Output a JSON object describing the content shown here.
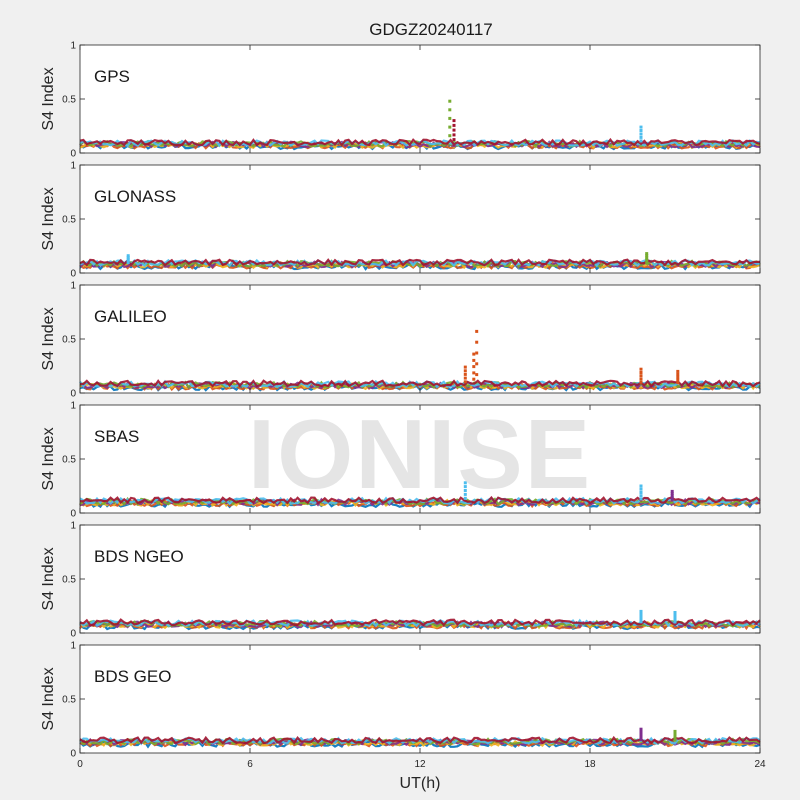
{
  "chart_data": {
    "type": "scatter",
    "title": "GDGZ20240117",
    "xlabel": "UT(h)",
    "ylabel": "S4 Index",
    "xlim": [
      0,
      24
    ],
    "ylim": [
      0,
      1
    ],
    "xticks": [
      "0",
      "6",
      "12",
      "18",
      "24"
    ],
    "yticks": [
      "0",
      "0.5",
      "1"
    ],
    "watermark": "IONISE",
    "grid": false,
    "series_colors": [
      "#0072BD",
      "#D95319",
      "#EDB120",
      "#7E2F8E",
      "#77AC30",
      "#4DBEEE",
      "#A2142F"
    ],
    "panels": [
      {
        "name": "GPS",
        "baseline": 0.08,
        "spikes": [
          {
            "x": 13.05,
            "y": 0.48,
            "color": "#77AC30"
          },
          {
            "x": 13.2,
            "y": 0.3,
            "color": "#A2142F"
          },
          {
            "x": 19.8,
            "y": 0.24,
            "color": "#4DBEEE"
          }
        ]
      },
      {
        "name": "GLONASS",
        "baseline": 0.08,
        "spikes": [
          {
            "x": 1.7,
            "y": 0.16,
            "color": "#4DBEEE"
          },
          {
            "x": 20.0,
            "y": 0.18,
            "color": "#77AC30"
          }
        ]
      },
      {
        "name": "GALILEO",
        "baseline": 0.07,
        "spikes": [
          {
            "x": 14.0,
            "y": 0.57,
            "color": "#D95319"
          },
          {
            "x": 13.9,
            "y": 0.36,
            "color": "#D95319"
          },
          {
            "x": 13.6,
            "y": 0.24,
            "color": "#D95319"
          },
          {
            "x": 19.8,
            "y": 0.22,
            "color": "#D95319"
          },
          {
            "x": 21.1,
            "y": 0.2,
            "color": "#D95319"
          }
        ]
      },
      {
        "name": "SBAS",
        "baseline": 0.1,
        "spikes": [
          {
            "x": 13.6,
            "y": 0.28,
            "color": "#4DBEEE"
          },
          {
            "x": 19.8,
            "y": 0.25,
            "color": "#4DBEEE"
          },
          {
            "x": 20.9,
            "y": 0.2,
            "color": "#7E2F8E"
          }
        ]
      },
      {
        "name": "BDS NGEO",
        "baseline": 0.08,
        "spikes": [
          {
            "x": 19.8,
            "y": 0.2,
            "color": "#4DBEEE"
          },
          {
            "x": 21.0,
            "y": 0.19,
            "color": "#4DBEEE"
          }
        ]
      },
      {
        "name": "BDS GEO",
        "baseline": 0.1,
        "spikes": [
          {
            "x": 19.8,
            "y": 0.22,
            "color": "#7E2F8E"
          },
          {
            "x": 21.0,
            "y": 0.2,
            "color": "#77AC30"
          }
        ]
      }
    ]
  }
}
